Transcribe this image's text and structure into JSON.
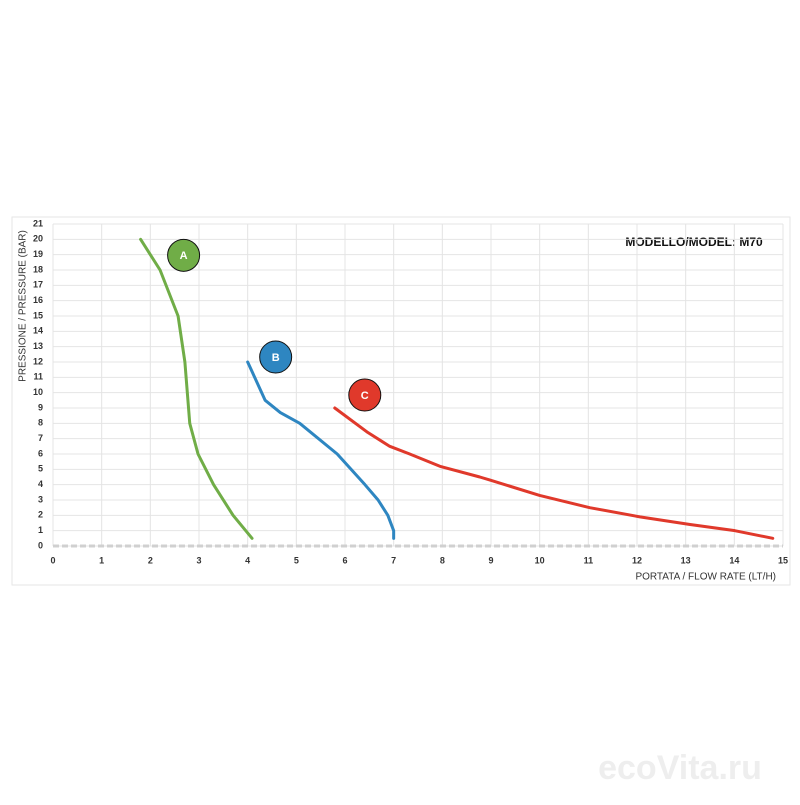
{
  "chart_data": {
    "type": "line",
    "title": "MODELLO/MODEL: M70",
    "x_label": "PORTATA / FLOW RATE (LT/H)",
    "y_label": "PRESSIONE / PRESSURE (BAR)",
    "watermark": "ecoVita.ru",
    "xlim": [
      0,
      15
    ],
    "xticks": [
      0,
      1,
      2,
      3,
      4,
      5,
      6,
      7,
      8,
      9,
      10,
      11,
      12,
      13,
      14,
      15
    ],
    "ylim": [
      0,
      21
    ],
    "yticks": [
      0,
      1,
      2,
      3,
      4,
      5,
      6,
      7,
      8,
      9,
      10,
      11,
      12,
      13,
      14,
      15,
      16,
      17,
      18,
      19,
      20,
      21
    ],
    "grid": true,
    "series": [
      {
        "name": "A",
        "color": "#70ad47",
        "x": [
          1.8,
          2.2,
          2.57,
          2.71,
          2.81,
          2.98,
          3.3,
          3.7,
          4.09
        ],
        "values": [
          20,
          18,
          15,
          12,
          8,
          6,
          4,
          2,
          0.5
        ]
      },
      {
        "name": "B",
        "color": "#2e86c1",
        "x": [
          4.0,
          4.36,
          4.67,
          5.07,
          5.84,
          6.41,
          6.68,
          6.88,
          7.0,
          7.0
        ],
        "values": [
          12,
          9.5,
          8.7,
          8,
          6,
          4,
          3,
          2,
          1,
          0.5
        ]
      },
      {
        "name": "C",
        "color": "#e0392b",
        "x": [
          5.79,
          6.47,
          6.92,
          7.33,
          7.95,
          8.77,
          8.98,
          10.0,
          11.03,
          12.06,
          13.09,
          14.01,
          14.79
        ],
        "values": [
          9.0,
          7.4,
          6.5,
          6,
          5.2,
          4.5,
          4.3,
          3.3,
          2.5,
          1.9,
          1.4,
          1.0,
          0.5
        ]
      }
    ]
  }
}
